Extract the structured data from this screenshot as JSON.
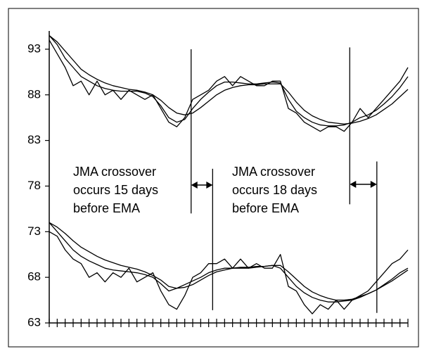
{
  "chart_data": {
    "type": "line",
    "x": [
      0,
      1,
      2,
      3,
      4,
      5,
      6,
      7,
      8,
      9,
      10,
      11,
      12,
      13,
      14,
      15,
      16,
      17,
      18,
      19,
      20,
      21,
      22,
      23,
      24,
      25,
      26,
      27,
      28,
      29,
      30,
      31,
      32,
      33,
      34,
      35,
      36,
      37,
      38,
      39,
      40,
      41,
      42,
      43,
      44,
      45
    ],
    "series": [
      {
        "color": "#000000",
        "values": [
          94,
          92.5,
          91,
          89,
          89.5,
          88,
          89.5,
          88,
          88.5,
          87.5,
          88.5,
          88,
          87.5,
          88,
          86.5,
          85,
          84.5,
          85.5,
          87.5,
          88,
          88.5,
          89.5,
          90,
          89,
          90,
          89.5,
          89,
          89,
          89.5,
          89.5,
          86.5,
          86,
          85,
          84.5,
          84,
          84.5,
          84.5,
          84,
          85,
          86.5,
          85.5,
          86.5,
          87.5,
          88.5,
          89.5,
          91
        ]
      },
      {
        "color": "#000000",
        "values": [
          94.5,
          93.5,
          92,
          91,
          90,
          89.5,
          89,
          88.7,
          88.5,
          88.4,
          88.4,
          88.4,
          88.2,
          87.8,
          86.8,
          85.5,
          85,
          85.3,
          86.5,
          87.5,
          88.3,
          89,
          89.4,
          89.4,
          89.3,
          89.2,
          89.2,
          89.3,
          89.4,
          89.3,
          87.5,
          86.2,
          85.5,
          85,
          84.7,
          84.6,
          84.6,
          84.7,
          85,
          85.5,
          85.8,
          86.3,
          87,
          87.8,
          88.8,
          90
        ]
      },
      {
        "color": "#000000",
        "values": [
          94.5,
          93.8,
          92.8,
          91.8,
          90.8,
          90.2,
          89.7,
          89.3,
          89,
          88.8,
          88.6,
          88.5,
          88.3,
          88,
          87.4,
          86.6,
          86,
          85.8,
          86,
          86.6,
          87.3,
          88,
          88.5,
          88.8,
          89,
          89.1,
          89.1,
          89.2,
          89.2,
          89.2,
          88.3,
          87.2,
          86.3,
          85.7,
          85.3,
          85,
          84.9,
          84.8,
          84.9,
          85.1,
          85.4,
          85.8,
          86.4,
          87,
          87.8,
          88.6
        ]
      },
      {
        "color": "#000000",
        "values": [
          73,
          72.5,
          71,
          70,
          69.5,
          68,
          68.5,
          67.5,
          68.5,
          68,
          69,
          67.5,
          68,
          68.5,
          66.5,
          65,
          64.5,
          66,
          68,
          68.5,
          69.5,
          69.5,
          70,
          69,
          70,
          69,
          69.5,
          69,
          69,
          70.5,
          67,
          66.5,
          65,
          64,
          65,
          64.5,
          65.5,
          64.5,
          65.5,
          66,
          66.5,
          67.5,
          68.5,
          69.5,
          70,
          71
        ]
      },
      {
        "color": "#000000",
        "values": [
          74,
          73,
          72,
          71,
          70.3,
          69.8,
          69.4,
          69,
          68.8,
          68.7,
          68.6,
          68.5,
          68.3,
          68,
          67.3,
          66.5,
          66.8,
          67.2,
          67.6,
          68,
          68.5,
          68.8,
          69,
          69,
          69,
          69,
          69.1,
          69.2,
          69.3,
          69,
          68,
          67,
          66.3,
          65.8,
          65.5,
          65.3,
          65.3,
          65.4,
          65.5,
          65.8,
          66.2,
          66.6,
          67.2,
          67.8,
          68.5,
          69
        ]
      },
      {
        "color": "#000000",
        "values": [
          74,
          73.5,
          72.8,
          72,
          71.3,
          70.8,
          70.3,
          69.9,
          69.6,
          69.3,
          69.1,
          68.9,
          68.6,
          68.2,
          67.7,
          67,
          66.8,
          66.9,
          67.2,
          67.7,
          68.2,
          68.6,
          68.8,
          69,
          69.1,
          69.1,
          69.2,
          69.2,
          69.3,
          69.3,
          68.6,
          67.8,
          67,
          66.4,
          66,
          65.7,
          65.5,
          65.5,
          65.6,
          65.9,
          66.2,
          66.6,
          67.1,
          67.6,
          68.2,
          68.8
        ]
      }
    ],
    "xlim": [
      0,
      45
    ],
    "xticks": [
      0,
      1,
      2,
      3,
      4,
      5,
      6,
      7,
      8,
      9,
      10,
      11,
      12,
      13,
      14,
      15,
      16,
      17,
      18,
      19,
      20,
      21,
      22,
      23,
      24,
      25,
      26,
      27,
      28,
      29,
      30,
      31,
      32,
      33,
      34,
      35,
      36,
      37,
      38,
      39,
      40,
      41,
      42,
      43,
      44,
      45
    ],
    "ylim": [
      63,
      95
    ],
    "yticks": [
      63,
      68,
      73,
      78,
      83,
      88,
      93
    ],
    "vlines": [
      {
        "x": 17.8,
        "range": [
          75.0,
          93
        ]
      },
      {
        "x": 20.5,
        "range": [
          64.4,
          79.9
        ]
      },
      {
        "x": 37.7,
        "range": [
          76.0,
          93.2
        ]
      },
      {
        "x": 41.1,
        "range": [
          64.1,
          80.7
        ]
      }
    ],
    "annotations": [
      {
        "lines": [
          "JMA crossover",
          "occurs 15 days",
          "before EMA"
        ]
      },
      {
        "lines": [
          "JMA crossover",
          "occurs 18 days",
          "before EMA"
        ]
      }
    ]
  }
}
